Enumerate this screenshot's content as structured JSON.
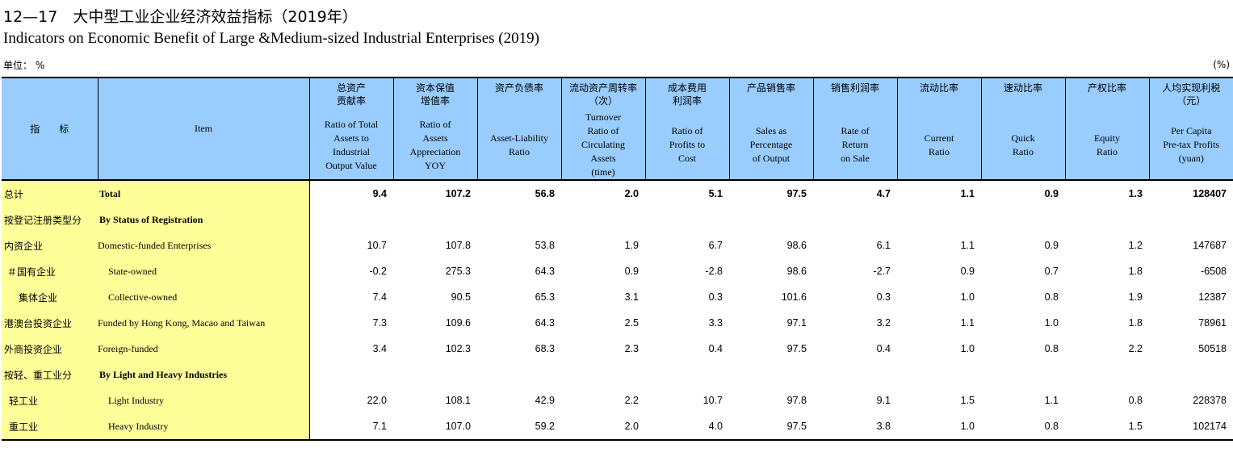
{
  "title_cn": "12—17　大中型工业企业经济效益指标（2019年）",
  "title_en": "Indicators on Economic Benefit of Large &Medium-sized Industrial Enterprises (2019)",
  "unit_left": "单位：  %",
  "unit_right": "(%)",
  "header": {
    "item_cn": "指　　标",
    "item_en": "Item",
    "columns": [
      {
        "cn": "总资产\n贡献率",
        "en": "Ratio of Total\nAssets to\nIndustrial\nOutput Value"
      },
      {
        "cn": "资本保值\n增值率",
        "en": "Ratio of\nAssets\nAppreciation\nYOY"
      },
      {
        "cn": "资产负债率",
        "en": "Asset-Liability\nRatio"
      },
      {
        "cn": "流动资产周转率\n（次）",
        "en": "Turnover\nRatio of\nCirculating\nAssets\n(time)"
      },
      {
        "cn": "成本费用\n利润率",
        "en": "Ratio of\nProfits to\nCost"
      },
      {
        "cn": "产品销售率",
        "en": "Sales as\nPercentage\nof Output"
      },
      {
        "cn": "销售利润率",
        "en": "Rate of\nReturn\non Sale"
      },
      {
        "cn": "流动比率",
        "en": "Current\nRatio"
      },
      {
        "cn": "速动比率",
        "en": "Quick\nRatio"
      },
      {
        "cn": "产权比率",
        "en": "Equity\nRatio"
      },
      {
        "cn": "人均实现利税\n（元）",
        "en": "Per Capita\nPre-tax Profits\n(yuan)"
      }
    ]
  },
  "rows": [
    {
      "cn": "总计",
      "en": "Total",
      "values": [
        "9.4",
        "107.2",
        "56.8",
        "2.0",
        "5.1",
        "97.5",
        "4.7",
        "1.1",
        "0.9",
        "1.3",
        "128407"
      ]
    },
    {
      "cn": "按登记注册类型分",
      "en": "By Status of Registration",
      "values": [
        "",
        "",
        "",
        "",
        "",
        "",
        "",
        "",
        "",
        "",
        ""
      ]
    },
    {
      "cn": "内资企业",
      "en": "Domestic-funded Enterprises",
      "values": [
        "10.7",
        "107.8",
        "53.8",
        "1.9",
        "6.7",
        "98.6",
        "6.1",
        "1.1",
        "0.9",
        "1.2",
        "147687"
      ]
    },
    {
      "cn": "＃国有企业",
      "en": "State-owned",
      "values": [
        "-0.2",
        "275.3",
        "64.3",
        "0.9",
        "-2.8",
        "98.6",
        "-2.7",
        "0.9",
        "0.7",
        "1.8",
        "-6508"
      ]
    },
    {
      "cn": "集体企业",
      "en": "Collective-owned",
      "values": [
        "7.4",
        "90.5",
        "65.3",
        "3.1",
        "0.3",
        "101.6",
        "0.3",
        "1.0",
        "0.8",
        "1.9",
        "12387"
      ]
    },
    {
      "cn": "港澳台投资企业",
      "en": "Funded by Hong Kong, Macao and Taiwan",
      "values": [
        "7.3",
        "109.6",
        "64.3",
        "2.5",
        "3.3",
        "97.1",
        "3.2",
        "1.1",
        "1.0",
        "1.8",
        "78961"
      ]
    },
    {
      "cn": "外商投资企业",
      "en": "Foreign-funded",
      "values": [
        "3.4",
        "102.3",
        "68.3",
        "2.3",
        "0.4",
        "97.5",
        "0.4",
        "1.0",
        "0.8",
        "2.2",
        "50518"
      ]
    },
    {
      "cn": "按轻、重工业分",
      "en": "By Light and Heavy Industries",
      "values": [
        "",
        "",
        "",
        "",
        "",
        "",
        "",
        "",
        "",
        "",
        ""
      ]
    },
    {
      "cn": "轻工业",
      "en": "Light Industry",
      "values": [
        "22.0",
        "108.1",
        "42.9",
        "2.2",
        "10.7",
        "97.8",
        "9.1",
        "1.5",
        "1.1",
        "0.8",
        "228378"
      ]
    },
    {
      "cn": "重工业",
      "en": "Heavy Industry",
      "values": [
        "7.1",
        "107.0",
        "59.2",
        "2.0",
        "4.0",
        "97.5",
        "3.8",
        "1.0",
        "0.8",
        "1.5",
        "102174"
      ]
    }
  ]
}
